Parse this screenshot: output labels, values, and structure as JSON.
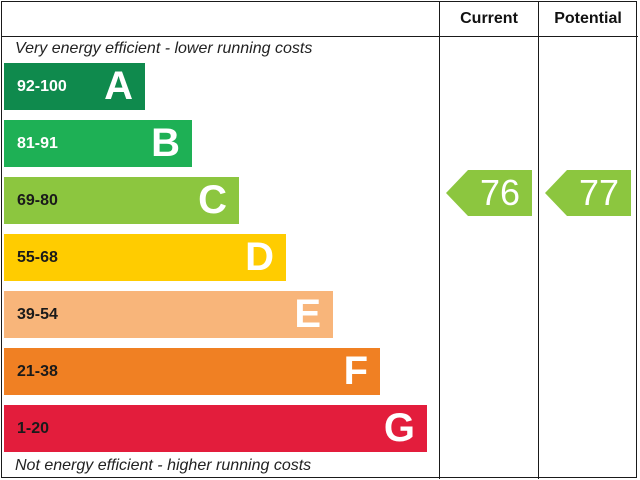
{
  "chart_data": {
    "type": "epc-rating",
    "columns": {
      "current": "Current",
      "potential": "Potential"
    },
    "caption_top": "Very energy efficient - lower running costs",
    "caption_bottom": "Not energy efficient - higher running costs",
    "bands": [
      {
        "letter": "A",
        "range": "92-100",
        "min": 92,
        "max": 100,
        "color": "#0f8a4d",
        "range_color": "#ffffff"
      },
      {
        "letter": "B",
        "range": "81-91",
        "min": 81,
        "max": 91,
        "color": "#1eb055",
        "range_color": "#ffffff"
      },
      {
        "letter": "C",
        "range": "69-80",
        "min": 69,
        "max": 80,
        "color": "#8cc63f",
        "range_color": "#1a1a1a"
      },
      {
        "letter": "D",
        "range": "55-68",
        "min": 55,
        "max": 68,
        "color": "#ffcc00",
        "range_color": "#1a1a1a"
      },
      {
        "letter": "E",
        "range": "39-54",
        "min": 39,
        "max": 54,
        "color": "#f8b57a",
        "range_color": "#1a1a1a"
      },
      {
        "letter": "F",
        "range": "21-38",
        "min": 21,
        "max": 38,
        "color": "#f08023",
        "range_color": "#1a1a1a"
      },
      {
        "letter": "G",
        "range": "1-20",
        "min": 1,
        "max": 20,
        "color": "#e31d3c",
        "range_color": "#1a1a1a"
      }
    ],
    "current": {
      "value": 76,
      "label": "76",
      "band": "C",
      "color": "#8cc63f"
    },
    "potential": {
      "value": 77,
      "label": "77",
      "band": "C",
      "color": "#8cc63f"
    }
  }
}
